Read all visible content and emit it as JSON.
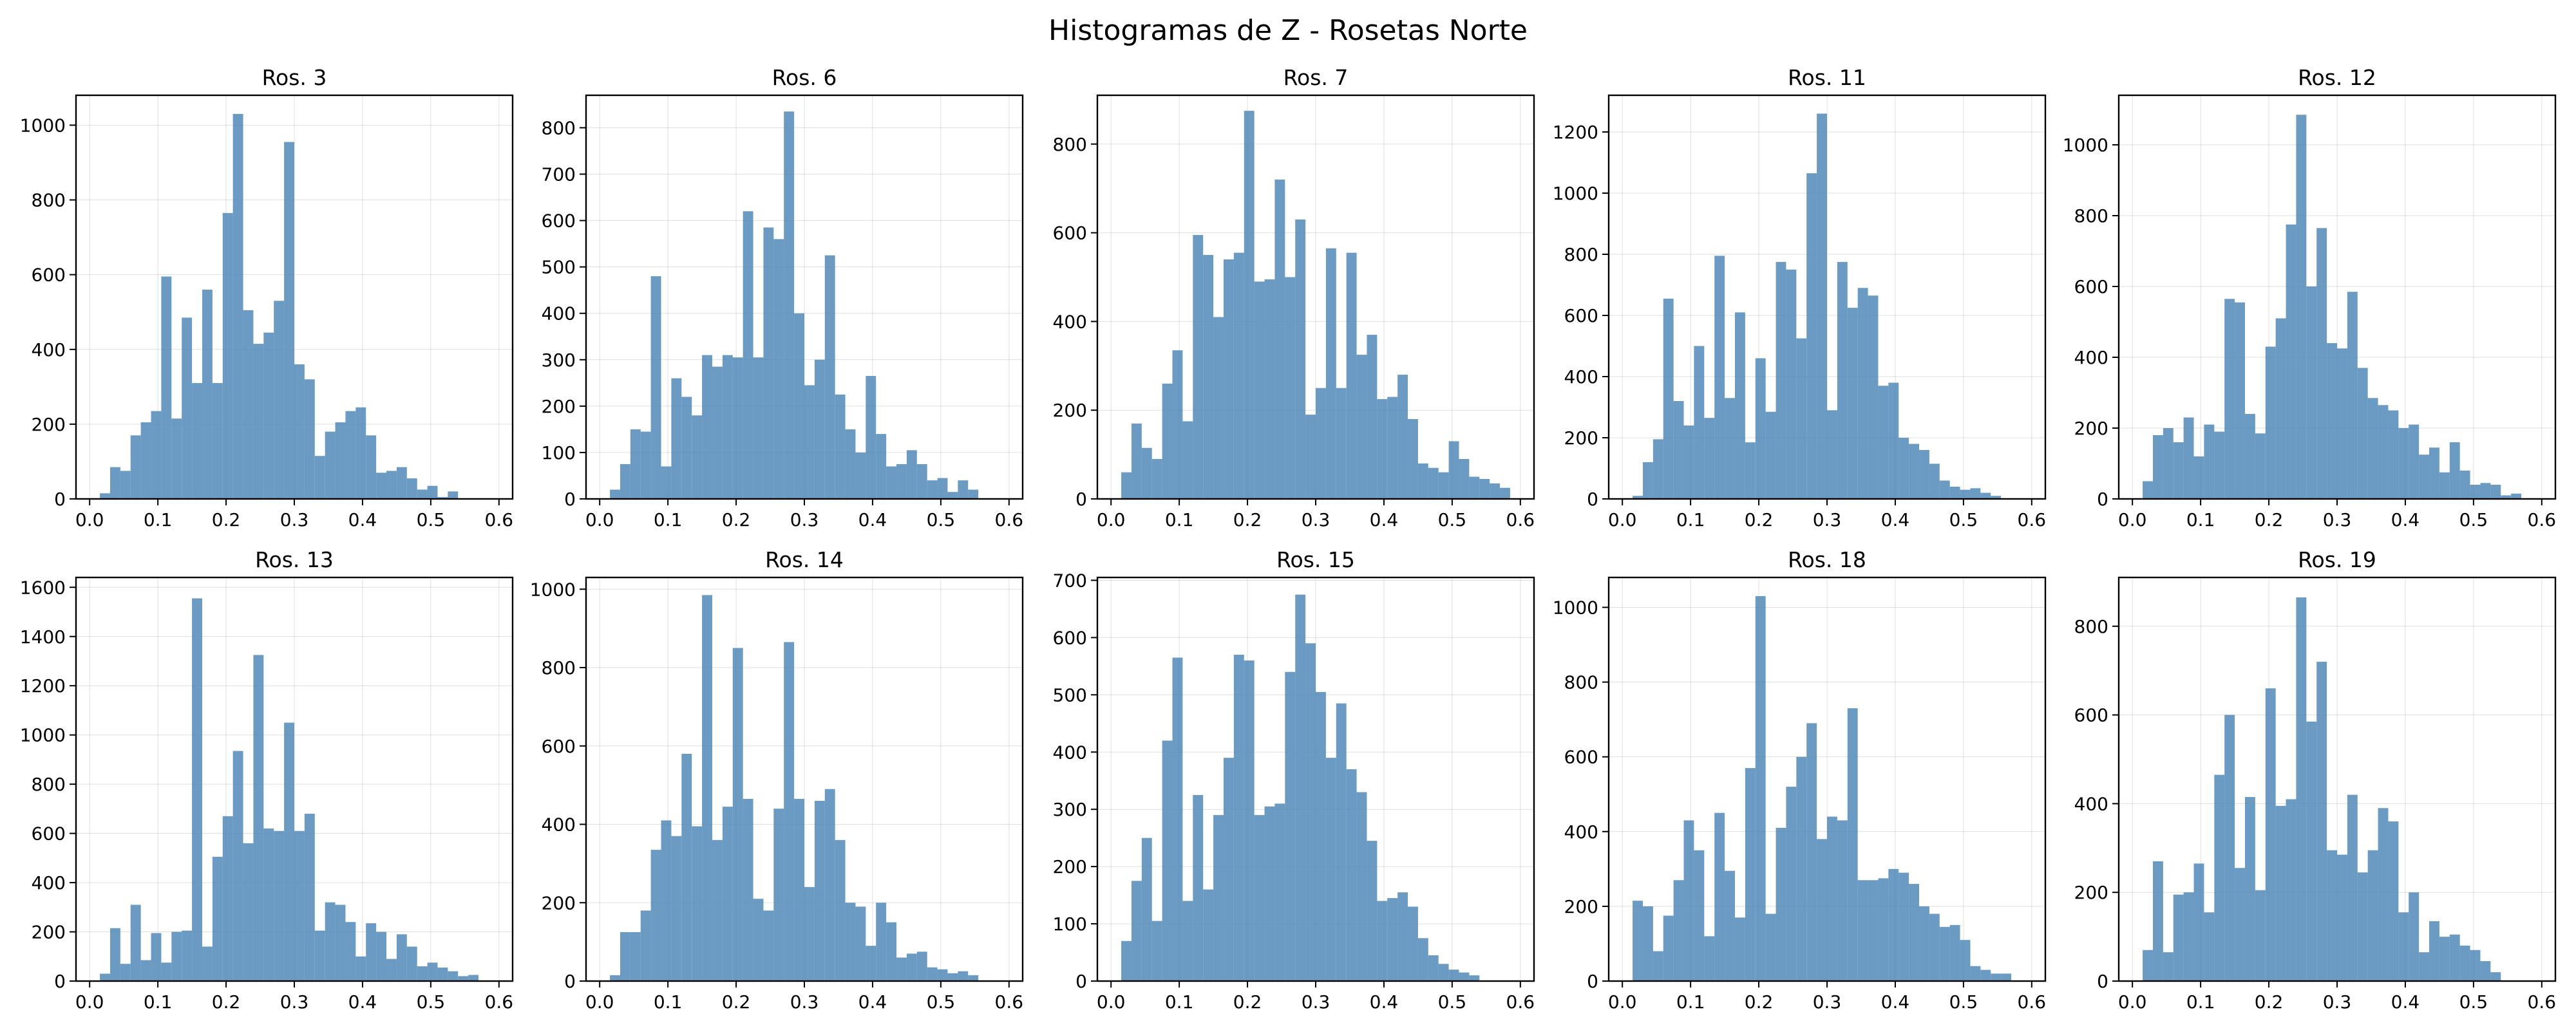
{
  "figure": {
    "title": "Histogramas de Z - Rosetas Norte"
  },
  "chart_data": [
    {
      "type": "bar",
      "title": "Ros. 3",
      "xlim": [
        -0.02,
        0.62
      ],
      "ylim": [
        0,
        1080
      ],
      "xticks": [
        "0.0",
        "0.1",
        "0.2",
        "0.3",
        "0.4",
        "0.5",
        "0.6"
      ],
      "yticks": [
        "0",
        "200",
        "400",
        "600",
        "800",
        "1000"
      ],
      "bin_start": 0.0,
      "bin_width": 0.015,
      "grid": true,
      "values": [
        0,
        15,
        85,
        75,
        170,
        205,
        235,
        595,
        215,
        485,
        310,
        560,
        310,
        765,
        1030,
        505,
        415,
        445,
        530,
        955,
        360,
        320,
        115,
        180,
        205,
        235,
        245,
        170,
        70,
        75,
        85,
        55,
        25,
        35,
        5,
        20,
        0,
        0,
        0,
        0
      ]
    },
    {
      "type": "bar",
      "title": "Ros. 6",
      "xlim": [
        -0.02,
        0.62
      ],
      "ylim": [
        0,
        870
      ],
      "xticks": [
        "0.0",
        "0.1",
        "0.2",
        "0.3",
        "0.4",
        "0.5",
        "0.6"
      ],
      "yticks": [
        "0",
        "100",
        "200",
        "300",
        "400",
        "500",
        "600",
        "700",
        "800"
      ],
      "bin_start": 0.0,
      "bin_width": 0.015,
      "grid": true,
      "values": [
        0,
        20,
        75,
        150,
        145,
        480,
        70,
        260,
        220,
        180,
        310,
        285,
        310,
        305,
        620,
        305,
        585,
        560,
        835,
        400,
        245,
        300,
        525,
        225,
        150,
        100,
        265,
        140,
        70,
        75,
        105,
        75,
        40,
        45,
        15,
        40,
        20,
        0,
        0,
        0
      ]
    },
    {
      "type": "bar",
      "title": "Ros. 7",
      "xlim": [
        -0.02,
        0.62
      ],
      "ylim": [
        0,
        910
      ],
      "xticks": [
        "0.0",
        "0.1",
        "0.2",
        "0.3",
        "0.4",
        "0.5",
        "0.6"
      ],
      "yticks": [
        "0",
        "200",
        "400",
        "600",
        "800"
      ],
      "bin_start": 0.0,
      "bin_width": 0.015,
      "grid": true,
      "values": [
        0,
        60,
        170,
        115,
        90,
        260,
        335,
        175,
        595,
        550,
        410,
        540,
        555,
        875,
        490,
        495,
        720,
        500,
        630,
        190,
        250,
        565,
        250,
        555,
        325,
        370,
        225,
        230,
        280,
        180,
        80,
        70,
        60,
        130,
        90,
        50,
        45,
        35,
        25,
        0
      ]
    },
    {
      "type": "bar",
      "title": "Ros. 11",
      "xlim": [
        -0.02,
        0.62
      ],
      "ylim": [
        0,
        1320
      ],
      "xticks": [
        "0.0",
        "0.1",
        "0.2",
        "0.3",
        "0.4",
        "0.5",
        "0.6"
      ],
      "yticks": [
        "0",
        "200",
        "400",
        "600",
        "800",
        "1000",
        "1200"
      ],
      "bin_start": 0.0,
      "bin_width": 0.015,
      "grid": true,
      "values": [
        0,
        10,
        120,
        195,
        655,
        320,
        240,
        500,
        265,
        795,
        330,
        610,
        185,
        460,
        285,
        775,
        750,
        525,
        1065,
        1260,
        290,
        775,
        625,
        690,
        665,
        370,
        380,
        200,
        180,
        160,
        115,
        60,
        40,
        30,
        35,
        20,
        10,
        0,
        0,
        0
      ]
    },
    {
      "type": "bar",
      "title": "Ros. 12",
      "xlim": [
        -0.02,
        0.62
      ],
      "ylim": [
        0,
        1140
      ],
      "xticks": [
        "0.0",
        "0.1",
        "0.2",
        "0.3",
        "0.4",
        "0.5",
        "0.6"
      ],
      "yticks": [
        "0",
        "200",
        "400",
        "600",
        "800",
        "1000"
      ],
      "bin_start": 0.0,
      "bin_width": 0.015,
      "grid": true,
      "values": [
        0,
        50,
        180,
        200,
        160,
        230,
        120,
        210,
        190,
        565,
        555,
        240,
        185,
        430,
        510,
        775,
        1085,
        600,
        765,
        440,
        425,
        585,
        370,
        285,
        265,
        250,
        200,
        210,
        125,
        145,
        75,
        160,
        80,
        40,
        45,
        40,
        10,
        15,
        0,
        0
      ]
    },
    {
      "type": "bar",
      "title": "Ros. 13",
      "xlim": [
        -0.02,
        0.62
      ],
      "ylim": [
        0,
        1640
      ],
      "xticks": [
        "0.0",
        "0.1",
        "0.2",
        "0.3",
        "0.4",
        "0.5",
        "0.6"
      ],
      "yticks": [
        "0",
        "200",
        "400",
        "600",
        "800",
        "1000",
        "1200",
        "1400",
        "1600"
      ],
      "bin_start": 0.0,
      "bin_width": 0.015,
      "grid": true,
      "values": [
        0,
        30,
        215,
        70,
        310,
        85,
        195,
        75,
        200,
        205,
        1555,
        140,
        505,
        670,
        935,
        560,
        1325,
        620,
        610,
        1050,
        610,
        680,
        205,
        320,
        310,
        240,
        100,
        235,
        200,
        90,
        190,
        140,
        60,
        75,
        55,
        40,
        20,
        25,
        0,
        0
      ]
    },
    {
      "type": "bar",
      "title": "Ros. 14",
      "xlim": [
        -0.02,
        0.62
      ],
      "ylim": [
        0,
        1030
      ],
      "xticks": [
        "0.0",
        "0.1",
        "0.2",
        "0.3",
        "0.4",
        "0.5",
        "0.6"
      ],
      "yticks": [
        "0",
        "200",
        "400",
        "600",
        "800",
        "1000"
      ],
      "bin_start": 0.0,
      "bin_width": 0.015,
      "grid": true,
      "values": [
        0,
        15,
        125,
        125,
        180,
        335,
        410,
        370,
        580,
        395,
        985,
        360,
        445,
        850,
        465,
        210,
        180,
        440,
        865,
        465,
        240,
        460,
        490,
        360,
        200,
        190,
        90,
        200,
        150,
        60,
        70,
        75,
        35,
        30,
        20,
        25,
        15,
        0,
        0,
        0
      ]
    },
    {
      "type": "bar",
      "title": "Ros. 15",
      "xlim": [
        -0.02,
        0.62
      ],
      "ylim": [
        0,
        705
      ],
      "xticks": [
        "0.0",
        "0.1",
        "0.2",
        "0.3",
        "0.4",
        "0.5",
        "0.6"
      ],
      "yticks": [
        "0",
        "100",
        "200",
        "300",
        "400",
        "500",
        "600",
        "700"
      ],
      "bin_start": 0.0,
      "bin_width": 0.015,
      "grid": true,
      "values": [
        0,
        70,
        175,
        250,
        105,
        420,
        565,
        140,
        325,
        160,
        290,
        390,
        570,
        560,
        290,
        305,
        310,
        540,
        675,
        590,
        505,
        390,
        485,
        370,
        330,
        245,
        140,
        145,
        155,
        130,
        75,
        45,
        30,
        20,
        15,
        10,
        0,
        0,
        0,
        0
      ]
    },
    {
      "type": "bar",
      "title": "Ros. 18",
      "xlim": [
        -0.02,
        0.62
      ],
      "ylim": [
        0,
        1080
      ],
      "xticks": [
        "0.0",
        "0.1",
        "0.2",
        "0.3",
        "0.4",
        "0.5",
        "0.6"
      ],
      "yticks": [
        "0",
        "200",
        "400",
        "600",
        "800",
        "1000"
      ],
      "bin_start": 0.0,
      "bin_width": 0.015,
      "grid": true,
      "values": [
        0,
        215,
        200,
        80,
        175,
        270,
        430,
        350,
        120,
        450,
        295,
        170,
        570,
        1030,
        180,
        410,
        520,
        600,
        690,
        380,
        440,
        430,
        730,
        270,
        270,
        275,
        300,
        290,
        260,
        200,
        180,
        145,
        150,
        110,
        40,
        30,
        20,
        20,
        0,
        0
      ]
    },
    {
      "type": "bar",
      "title": "Ros. 19",
      "xlim": [
        -0.02,
        0.62
      ],
      "ylim": [
        0,
        910
      ],
      "xticks": [
        "0.0",
        "0.1",
        "0.2",
        "0.3",
        "0.4",
        "0.5",
        "0.6"
      ],
      "yticks": [
        "0",
        "200",
        "400",
        "600",
        "800"
      ],
      "bin_start": 0.0,
      "bin_width": 0.015,
      "grid": true,
      "values": [
        0,
        70,
        270,
        65,
        195,
        200,
        265,
        155,
        465,
        600,
        255,
        415,
        205,
        660,
        395,
        410,
        865,
        585,
        720,
        295,
        285,
        420,
        245,
        295,
        390,
        360,
        155,
        200,
        65,
        135,
        100,
        105,
        80,
        70,
        45,
        20,
        0,
        0,
        0,
        0
      ]
    }
  ]
}
